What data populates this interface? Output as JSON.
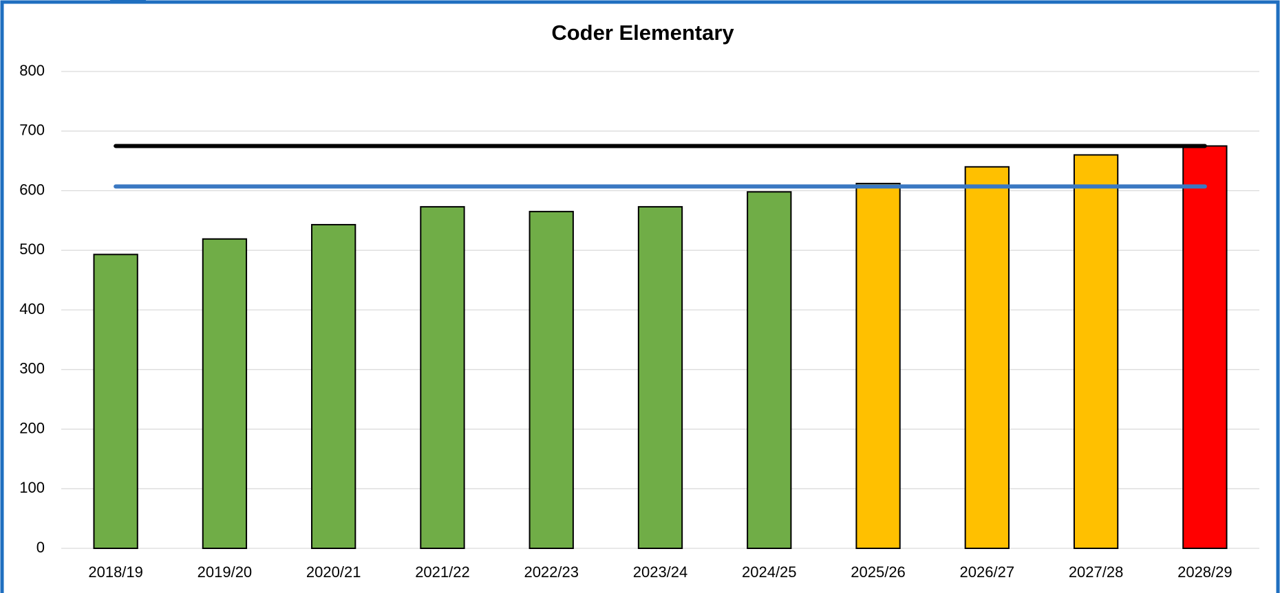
{
  "chart_data": {
    "type": "bar",
    "title": "Coder Elementary",
    "categories": [
      "2018/19",
      "2019/20",
      "2020/21",
      "2021/22",
      "2022/23",
      "2023/24",
      "2024/25",
      "2025/26",
      "2026/27",
      "2027/28",
      "2028/29"
    ],
    "values": [
      493,
      519,
      543,
      573,
      565,
      573,
      598,
      612,
      640,
      660,
      675
    ],
    "colors": [
      "#70ad47",
      "#70ad47",
      "#70ad47",
      "#70ad47",
      "#70ad47",
      "#70ad47",
      "#70ad47",
      "#ffc000",
      "#ffc000",
      "#ffc000",
      "#ff0000"
    ],
    "lines": [
      {
        "color": "#000000",
        "values": [
          675,
          675,
          675,
          675,
          675,
          675,
          675,
          675,
          675,
          675,
          675
        ]
      },
      {
        "color": "#3a78c2",
        "values": [
          607,
          607,
          607,
          607,
          607,
          607,
          607,
          607,
          607,
          607,
          607
        ]
      }
    ],
    "ylim": [
      0,
      800
    ],
    "yticks": [
      0,
      100,
      200,
      300,
      400,
      500,
      600,
      700,
      800
    ],
    "grid": true
  }
}
